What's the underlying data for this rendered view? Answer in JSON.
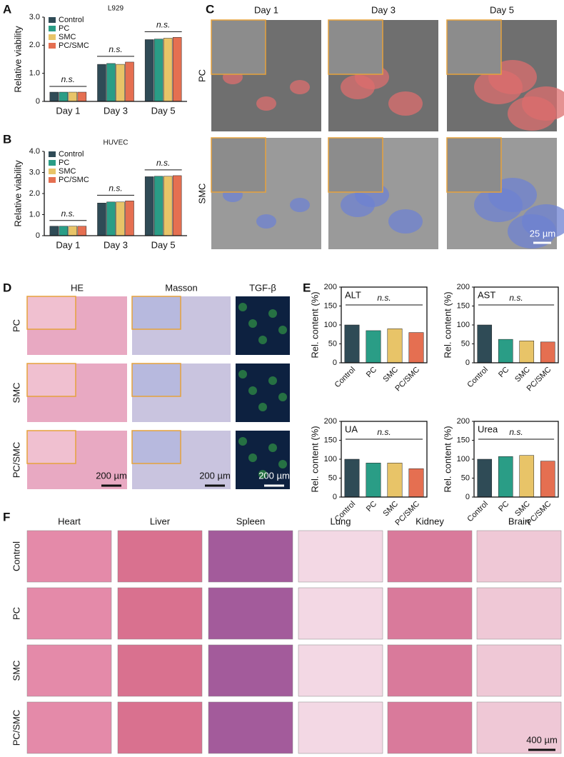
{
  "chart_data": [
    {
      "type": "bar",
      "title": "L929",
      "title_position": "top",
      "frame": "axes",
      "legend": "upper left",
      "ylabel": "Relative viability",
      "categories": [
        "Day 1",
        "Day 3",
        "Day 5"
      ],
      "series": [
        {
          "name": "Control",
          "color": "#2f4b56",
          "values": [
            0.33,
            1.32,
            2.2
          ]
        },
        {
          "name": "PC",
          "color": "#2a9d86",
          "values": [
            0.33,
            1.35,
            2.22
          ]
        },
        {
          "name": "SMC",
          "color": "#e8c468",
          "values": [
            0.33,
            1.32,
            2.25
          ]
        },
        {
          "name": "PC/SMC",
          "color": "#e56f51",
          "values": [
            0.33,
            1.4,
            2.28
          ]
        }
      ],
      "ylim": [
        0,
        3
      ],
      "yticks": [
        0,
        {
          "value": 1,
          "label": "1.0"
        },
        {
          "value": 2,
          "label": "2.0"
        },
        {
          "value": 3,
          "label": "3.0"
        }
      ],
      "annotations": [
        "n.s.",
        "n.s.",
        "n.s."
      ]
    },
    {
      "type": "bar",
      "title": "HUVEC",
      "title_position": "top",
      "frame": "axes",
      "legend": "upper left",
      "ylabel": "Relative viability",
      "categories": [
        "Day 1",
        "Day 3",
        "Day 5"
      ],
      "series": [
        {
          "name": "Control",
          "color": "#2f4b56",
          "values": [
            0.45,
            1.55,
            2.8
          ]
        },
        {
          "name": "PC",
          "color": "#2a9d86",
          "values": [
            0.45,
            1.6,
            2.82
          ]
        },
        {
          "name": "SMC",
          "color": "#e8c468",
          "values": [
            0.45,
            1.6,
            2.82
          ]
        },
        {
          "name": "PC/SMC",
          "color": "#e56f51",
          "values": [
            0.45,
            1.65,
            2.85
          ]
        }
      ],
      "ylim": [
        0,
        4
      ],
      "yticks": [
        0,
        {
          "value": 1,
          "label": "1.0"
        },
        {
          "value": 2,
          "label": "2.0"
        },
        {
          "value": 3,
          "label": "3.0"
        },
        {
          "value": 4,
          "label": "4.0"
        }
      ],
      "annotations": [
        "n.s.",
        "n.s.",
        "n.s."
      ]
    },
    {
      "type": "bar",
      "title": "ALT",
      "title_position": "inside",
      "frame": "box",
      "xtick_rotation": 45,
      "ylabel": "Rel. content (%)",
      "categories": [
        "Control",
        "PC",
        "SMC",
        "PC/SMC"
      ],
      "values": [
        100,
        85,
        90,
        80
      ],
      "colors": [
        "#2f4b56",
        "#2a9d86",
        "#e8c468",
        "#e56f51"
      ],
      "ylim": [
        0,
        200
      ],
      "yticks": [
        0,
        50,
        100,
        150,
        200
      ],
      "annotations": [
        "n.s."
      ]
    },
    {
      "type": "bar",
      "title": "AST",
      "title_position": "inside",
      "frame": "box",
      "xtick_rotation": 45,
      "ylabel": "Rel. content (%)",
      "categories": [
        "Control",
        "PC",
        "SMC",
        "PC/SMC"
      ],
      "values": [
        100,
        62,
        58,
        55
      ],
      "colors": [
        "#2f4b56",
        "#2a9d86",
        "#e8c468",
        "#e56f51"
      ],
      "ylim": [
        0,
        200
      ],
      "yticks": [
        0,
        50,
        100,
        150,
        200
      ],
      "annotations": [
        "n.s."
      ]
    },
    {
      "type": "bar",
      "title": "UA",
      "title_position": "inside",
      "frame": "box",
      "xtick_rotation": 45,
      "ylabel": "Rel. content (%)",
      "categories": [
        "Control",
        "PC",
        "SMC",
        "PC/SMC"
      ],
      "values": [
        100,
        90,
        90,
        75
      ],
      "colors": [
        "#2f4b56",
        "#2a9d86",
        "#e8c468",
        "#e56f51"
      ],
      "ylim": [
        0,
        200
      ],
      "yticks": [
        0,
        50,
        100,
        150,
        200
      ],
      "annotations": [
        "n.s."
      ]
    },
    {
      "type": "bar",
      "title": "Urea",
      "title_position": "inside",
      "frame": "box",
      "xtick_rotation": 45,
      "ylabel": "Rel. content (%)",
      "categories": [
        "Control",
        "PC",
        "SMC",
        "PC/SMC"
      ],
      "values": [
        100,
        107,
        110,
        95
      ],
      "colors": [
        "#2f4b56",
        "#2a9d86",
        "#e8c468",
        "#e56f51"
      ],
      "ylim": [
        0,
        200
      ],
      "yticks": [
        0,
        50,
        100,
        150,
        200
      ],
      "annotations": [
        "n.s."
      ]
    }
  ],
  "panel_labels": [
    "A",
    "B",
    "C",
    "D",
    "E",
    "F"
  ],
  "sem": {
    "columns": [
      "Day 1",
      "Day 3",
      "Day 5"
    ],
    "rows": [
      "PC",
      "SMC"
    ],
    "scale_bar": "25 µm"
  },
  "histology": {
    "columns": [
      "HE",
      "Masson",
      "TGF-β"
    ],
    "rows": [
      "PC",
      "SMC",
      "PC/SMC"
    ],
    "scale_bars": [
      "200 µm",
      "200 µm",
      "200 µm"
    ]
  },
  "organs": {
    "columns": [
      "Heart",
      "Liver",
      "Spleen",
      "Lung",
      "Kidney",
      "Brain"
    ],
    "rows": [
      "Control",
      "PC",
      "SMC",
      "PC/SMC"
    ],
    "scale_bar": "400 µm"
  }
}
